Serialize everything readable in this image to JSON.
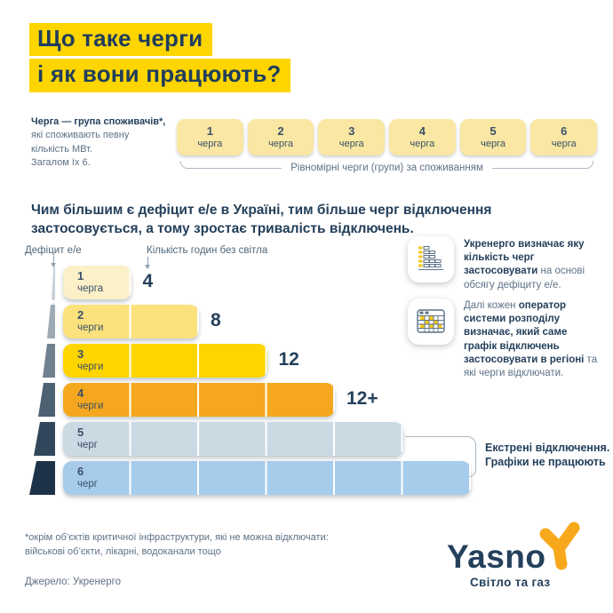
{
  "title": {
    "line1": "Що таке черги",
    "line2": "і як вони працюють?"
  },
  "intro": {
    "bold": "Черга — група споживачів*,",
    "rest": "які споживають певну\nкількість МВт.\nЗагалом їх 6."
  },
  "queue_group": {
    "boxes": [
      {
        "num": "1",
        "word": "черга"
      },
      {
        "num": "2",
        "word": "черга"
      },
      {
        "num": "3",
        "word": "черга"
      },
      {
        "num": "4",
        "word": "черга"
      },
      {
        "num": "5",
        "word": "черга"
      },
      {
        "num": "6",
        "word": "черга"
      }
    ],
    "caption": "Рівномірні черги (групи) за споживанням"
  },
  "lead": "Чим більшим є дефіцит е/е в Україні, тим більше черг відключення застосовується, а тому зростає тривалість відключень.",
  "chart_data": {
    "type": "bar",
    "orientation": "horizontal",
    "y_axis_label": "Дефіцит е/е",
    "x_axis_label": "Кількість годин без світла",
    "rows": [
      {
        "label_num": "1",
        "label_word": "черга",
        "queues": 1,
        "hours_without_light": "4",
        "color": "#FBF0C8"
      },
      {
        "label_num": "2",
        "label_word": "черги",
        "queues": 2,
        "hours_without_light": "8",
        "color": "#FBE27D"
      },
      {
        "label_num": "3",
        "label_word": "черги",
        "queues": 3,
        "hours_without_light": "12",
        "color": "#FFD500"
      },
      {
        "label_num": "4",
        "label_word": "черги",
        "queues": 4,
        "hours_without_light": "12+",
        "color": "#F5A81F"
      },
      {
        "label_num": "5",
        "label_word": "черг",
        "queues": 5,
        "hours_without_light": "",
        "color": "#CBD9E3"
      },
      {
        "label_num": "6",
        "label_word": "черг",
        "queues": 6,
        "hours_without_light": "",
        "color": "#A7CBEB"
      }
    ],
    "deficit_wedge_colors": [
      "#C9D0D7",
      "#9EAAB4",
      "#71808E",
      "#4E6173",
      "#32475B",
      "#1E3347"
    ],
    "emergency_note": "Екстрені відключення.\nГрафіки не працюють"
  },
  "info_cards": [
    {
      "icon": "bar-chart-icon",
      "segments": [
        {
          "text": "Укренерго визначає яку кількість черг застосовувати",
          "bold": true
        },
        {
          "text": " на основі обсягу дефіциту е/е.",
          "bold": false
        }
      ]
    },
    {
      "icon": "schedule-grid-icon",
      "segments": [
        {
          "text": "Далі кожен ",
          "bold": false
        },
        {
          "text": "оператор системи розподілу визначає, який саме графік відключень застосовувати в регіоні",
          "bold": true
        },
        {
          "text": " та які черги відключати.",
          "bold": false
        }
      ]
    }
  ],
  "footnote": "*окрім об’єктів критичної інфраструктури, які не можна відключати:\nвійськові об’єкти, лікарні, водоканали тощо",
  "source": "Джерело: Укренерго",
  "logo": {
    "name": "Yasno",
    "tagline": "Світло та газ"
  },
  "colors": {
    "highlight_yellow": "#FFD500",
    "navy_text": "#24405B",
    "muted_text": "#5E7186",
    "logo_orange": "#F8A81B"
  }
}
